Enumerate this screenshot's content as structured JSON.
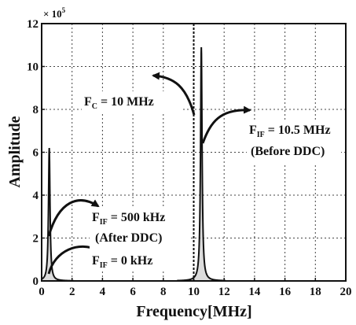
{
  "chart_data": {
    "type": "line",
    "xlabel": "Frequency[MHz]",
    "ylabel": "Amplitude",
    "y_multiplier": {
      "base": "× 10",
      "exp": "5"
    },
    "xlim": [
      0,
      20
    ],
    "ylim": [
      0,
      12
    ],
    "x_ticks": [
      "0",
      "2",
      "4",
      "6",
      "8",
      "10",
      "12",
      "14",
      "16",
      "18",
      "20"
    ],
    "y_ticks": [
      "0",
      "2",
      "4",
      "6",
      "8",
      "10",
      "12"
    ],
    "grid": true,
    "series": [
      {
        "peak_x": 0.5,
        "peak_y": 6.2
      },
      {
        "peak_x": 10.5,
        "peak_y": 10.9
      }
    ],
    "marker_line_x": 10.0,
    "annotations": [
      {
        "text": "F",
        "sub": "C",
        "rest": " = 10 MHz"
      },
      {
        "text": "F",
        "sub": "IF",
        "rest": " = 10.5 MHz",
        "line2": "(Before DDC)"
      },
      {
        "text": "F",
        "sub": "IF",
        "rest": " = 500 kHz",
        "line2": "(After DDC)"
      },
      {
        "text": "F",
        "sub": "IF",
        "rest": " = 0 kHz"
      }
    ]
  }
}
